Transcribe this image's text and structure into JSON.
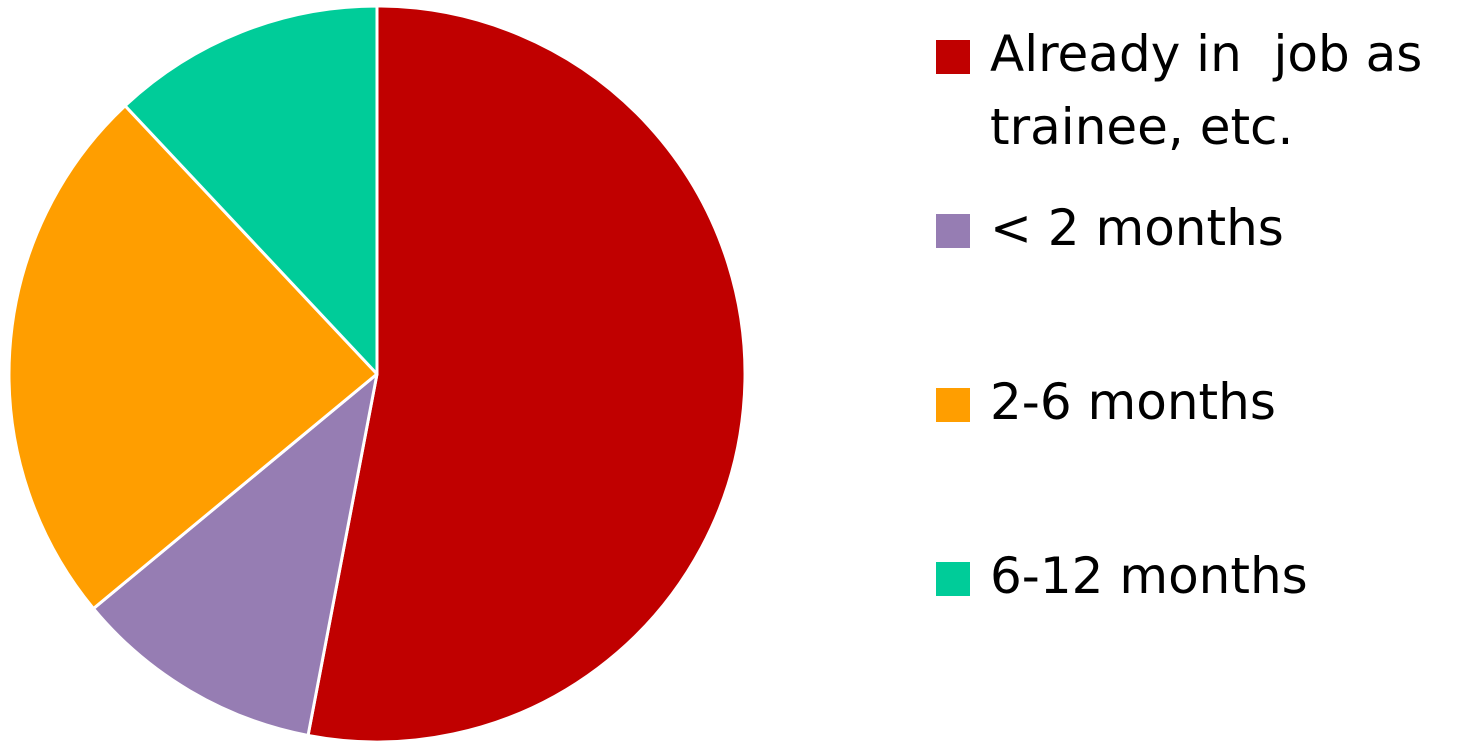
{
  "chart_data": {
    "type": "pie",
    "title": "",
    "start_angle_deg": 0,
    "direction": "clockwise",
    "slices": [
      {
        "label": "Already in  job as trainee, etc.",
        "value": 53,
        "color": "#C00000"
      },
      {
        "label": "< 2 months",
        "value": 11,
        "color": "#967DB3"
      },
      {
        "label": "2-6 months",
        "value": 24,
        "color": "#FF9E00"
      },
      {
        "label": "6-12 months",
        "value": 12,
        "color": "#00CC99"
      }
    ],
    "legend_position": "right"
  }
}
